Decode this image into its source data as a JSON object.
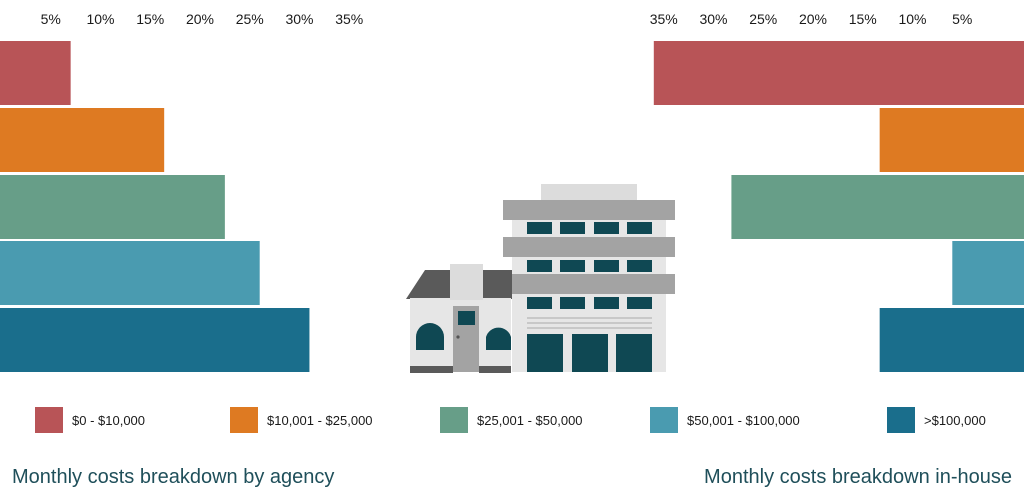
{
  "chart_data": [
    {
      "type": "bar",
      "orientation": "horizontal",
      "direction": "left-to-right",
      "title": "Monthly costs breakdown by agency",
      "categories": [
        "$0 - $10,000",
        "$10,001 - $25,000",
        "$25,001 - $50,000",
        "$50,001 - $100,000",
        ">$100,000"
      ],
      "values": [
        7,
        16.4,
        22.5,
        26,
        31
      ],
      "unit": "%",
      "xlim": [
        0,
        37
      ],
      "ticks": [
        "5%",
        "10%",
        "15%",
        "20%",
        "25%",
        "30%",
        "35%"
      ],
      "tick_values": [
        5,
        10,
        15,
        20,
        25,
        30,
        35
      ],
      "grid": false
    },
    {
      "type": "bar",
      "orientation": "horizontal",
      "direction": "right-to-left",
      "title": "Monthly costs breakdown in-house",
      "categories": [
        "$0 - $10,000",
        "$10,001 - $25,000",
        "$25,001 - $50,000",
        "$50,001 - $100,000",
        ">$100,000"
      ],
      "values": [
        36,
        13.3,
        28.2,
        6,
        13.3
      ],
      "unit": "%",
      "xlim": [
        0,
        37
      ],
      "ticks": [
        "35%",
        "30%",
        "25%",
        "20%",
        "15%",
        "10%",
        "5%"
      ],
      "tick_values": [
        35,
        30,
        25,
        20,
        15,
        10,
        5
      ],
      "grid": false
    }
  ],
  "legend": {
    "placement": "bottom",
    "items": [
      {
        "label": "$0 - $10,000",
        "color": "#b85457"
      },
      {
        "label": "$10,001 - $25,000",
        "color": "#de7a22"
      },
      {
        "label": "$25,001 - $50,000",
        "color": "#679e88"
      },
      {
        "label": "$50,001 - $100,000",
        "color": "#4a9bb0"
      },
      {
        "label": ">$100,000",
        "color": "#1a6e8c"
      }
    ]
  },
  "titles": {
    "left": "Monthly costs breakdown by agency",
    "right": "Monthly costs breakdown in-house"
  },
  "illustration": "buildings-icon"
}
